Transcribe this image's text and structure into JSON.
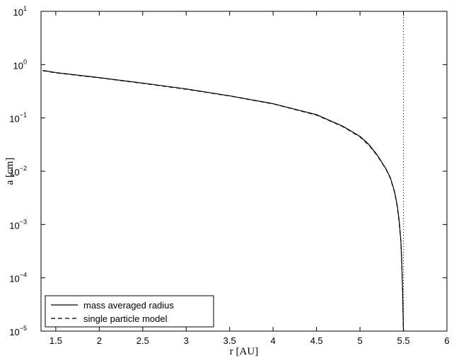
{
  "chart_data": {
    "type": "line",
    "x_label": "r [AU]",
    "y_label": "a [cm]",
    "x": [
      1.35,
      1.5,
      2,
      2.5,
      3,
      3.5,
      4,
      4.5,
      4.8,
      5,
      5.1,
      5.2,
      5.3,
      5.35,
      5.4,
      5.43,
      5.45,
      5.47,
      5.48,
      5.49,
      5.5
    ],
    "series": [
      {
        "name": "mass averaged radius",
        "color": "#000000",
        "dash": "solid",
        "values": [
          0.78,
          0.71,
          0.57,
          0.45,
          0.35,
          0.26,
          0.185,
          0.115,
          0.07,
          0.045,
          0.032,
          0.02,
          0.011,
          0.0075,
          0.004,
          0.0022,
          0.0012,
          0.0005,
          0.0002,
          6e-05,
          1e-05
        ]
      },
      {
        "name": "single particle model",
        "color": "#000000",
        "dash": "dashed",
        "values": [
          0.77,
          0.7,
          0.565,
          0.445,
          0.345,
          0.258,
          0.183,
          0.113,
          0.069,
          0.044,
          0.031,
          0.0195,
          0.0108,
          0.0073,
          0.0039,
          0.0021,
          0.0011,
          0.00048,
          0.00019,
          5.5e-05,
          1e-05
        ]
      }
    ],
    "reference_x": 5.5,
    "xlim": [
      1.33,
      6
    ],
    "xticks": [
      1.5,
      2,
      2.5,
      3,
      3.5,
      4,
      4.5,
      5,
      5.5,
      6
    ],
    "ylim": [
      1e-05,
      10
    ],
    "log_y": true,
    "yticks": [
      {
        "value": 1e-05,
        "label": "10",
        "exponent": "−5"
      },
      {
        "value": 0.0001,
        "label": "10",
        "exponent": "−4"
      },
      {
        "value": 0.001,
        "label": "10",
        "exponent": "−3"
      },
      {
        "value": 0.01,
        "label": "10",
        "exponent": "−2"
      },
      {
        "value": 0.1,
        "label": "10",
        "exponent": "−1"
      },
      {
        "value": 1,
        "label": "10",
        "exponent": "0"
      },
      {
        "value": 10,
        "label": "10",
        "exponent": "1"
      }
    ],
    "legend": "lower left"
  }
}
